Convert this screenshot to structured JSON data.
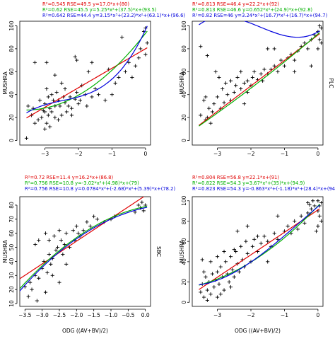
{
  "chart_data": [
    {
      "type": "scatter",
      "xlabel": "",
      "ylabel": "MUSHRA",
      "side_label": "",
      "x_ticks": [
        -3,
        -2,
        -1,
        0
      ],
      "y_ticks": [
        0,
        20,
        40,
        60,
        80,
        100
      ],
      "xlim": [
        -3.75,
        0.15
      ],
      "ylim": [
        -4,
        104
      ],
      "fit_texts": [
        {
          "text": "R²=0.545  RSE=49.5  y=17.0*x+(80)",
          "color": "#e00000"
        },
        {
          "text": "R²=0.62  RSE=45.5  y=5.25*x²+(37.5)*x+(93.5)",
          "color": "#00b000"
        },
        {
          "text": "R²=0.642  RSE=44.4  y=3.15*x³+(23.2)*x²+(63.1)*x+(96.6)",
          "color": "#0000dd"
        }
      ],
      "fits": [
        {
          "color": "#e00000",
          "coef": [
            80,
            17.0
          ]
        },
        {
          "color": "#00b000",
          "coef": [
            93.5,
            37.5,
            5.25
          ]
        },
        {
          "color": "#0000dd",
          "coef": [
            96.6,
            63.1,
            23.2,
            3.15
          ]
        }
      ],
      "points": [
        [
          -3.55,
          2
        ],
        [
          -3.5,
          30
        ],
        [
          -3.4,
          22
        ],
        [
          -3.35,
          28
        ],
        [
          -3.3,
          15
        ],
        [
          -3.2,
          18
        ],
        [
          -3.15,
          35
        ],
        [
          -3.1,
          20
        ],
        [
          -3.05,
          26
        ],
        [
          -3.0,
          10
        ],
        [
          -3.0,
          32
        ],
        [
          -2.95,
          45
        ],
        [
          -2.95,
          15
        ],
        [
          -2.9,
          22
        ],
        [
          -2.9,
          38
        ],
        [
          -2.85,
          28
        ],
        [
          -2.85,
          12
        ],
        [
          -2.8,
          25
        ],
        [
          -2.75,
          35
        ],
        [
          -2.7,
          30
        ],
        [
          -2.7,
          20
        ],
        [
          -2.65,
          42
        ],
        [
          -2.6,
          35
        ],
        [
          -2.55,
          30
        ],
        [
          -2.5,
          50
        ],
        [
          -2.5,
          22
        ],
        [
          -2.45,
          38
        ],
        [
          -2.4,
          45
        ],
        [
          -2.35,
          25
        ],
        [
          -2.3,
          30
        ],
        [
          -2.25,
          38
        ],
        [
          -2.2,
          22
        ],
        [
          -2.1,
          36
        ],
        [
          -2.05,
          42
        ],
        [
          -2.0,
          32
        ],
        [
          -1.95,
          35
        ],
        [
          -1.9,
          48
        ],
        [
          -1.8,
          40
        ],
        [
          -1.75,
          30
        ],
        [
          -1.7,
          60
        ],
        [
          -1.6,
          38
        ],
        [
          -1.5,
          45
        ],
        [
          -1.4,
          40
        ],
        [
          -1.2,
          35
        ],
        [
          -1.1,
          62
        ],
        [
          -1.0,
          40
        ],
        [
          -0.9,
          50
        ],
        [
          -0.8,
          55
        ],
        [
          -0.7,
          90
        ],
        [
          -0.6,
          60
        ],
        [
          -0.5,
          68
        ],
        [
          -0.4,
          55
        ],
        [
          -0.3,
          65
        ],
        [
          -0.2,
          72
        ],
        [
          -0.15,
          80
        ],
        [
          -0.05,
          95
        ],
        [
          0.0,
          98
        ],
        [
          0.05,
          85
        ],
        [
          0.0,
          75
        ],
        [
          -3.3,
          68
        ],
        [
          -2.95,
          68
        ],
        [
          -2.7,
          57
        ],
        [
          -2.1,
          73
        ],
        [
          -2.05,
          70
        ],
        [
          -1.6,
          68
        ],
        [
          -3.0,
          25
        ],
        [
          -2.8,
          40
        ],
        [
          -2.6,
          18
        ],
        [
          -2.4,
          33
        ],
        [
          -2.2,
          28
        ]
      ]
    },
    {
      "type": "scatter",
      "xlabel": "",
      "ylabel": "MUSHRA",
      "side_label": "PLC",
      "x_ticks": [
        -3,
        -2,
        -1,
        0
      ],
      "y_ticks": [
        0,
        20,
        40,
        60,
        80,
        100
      ],
      "xlim": [
        -3.75,
        0.15
      ],
      "ylim": [
        -4,
        104
      ],
      "fit_texts": [
        {
          "text": "R²=0.813  RSE=46.4  y=22.2*x+(92)",
          "color": "#e00000"
        },
        {
          "text": "R²=0.813  RSE=46.6  y=0.652*x²+(24.9)*x+(92.8)",
          "color": "#00b000"
        },
        {
          "text": "R²=0.82  RSE=46  y=3.24*x³+(16.7)*x²+(16.7)*x+(94.7)",
          "color": "#0000dd"
        }
      ],
      "fits": [
        {
          "color": "#e00000",
          "coef": [
            92,
            22.2
          ]
        },
        {
          "color": "#00b000",
          "coef": [
            92.8,
            24.9,
            0.652
          ]
        },
        {
          "color": "#0000dd",
          "coef": [
            94.7,
            16.7,
            16.7,
            3.24
          ]
        }
      ],
      "points": [
        [
          -3.5,
          22
        ],
        [
          -3.4,
          35
        ],
        [
          -3.35,
          18
        ],
        [
          -3.3,
          20
        ],
        [
          -3.25,
          28
        ],
        [
          -3.2,
          15
        ],
        [
          -3.15,
          25
        ],
        [
          -3.1,
          32
        ],
        [
          -3.0,
          38
        ],
        [
          -2.9,
          28
        ],
        [
          -2.85,
          45
        ],
        [
          -2.8,
          33
        ],
        [
          -2.75,
          50
        ],
        [
          -2.7,
          40
        ],
        [
          -2.6,
          35
        ],
        [
          -2.5,
          42
        ],
        [
          -2.45,
          48
        ],
        [
          -2.4,
          55
        ],
        [
          -2.3,
          45
        ],
        [
          -2.2,
          50
        ],
        [
          -2.1,
          52
        ],
        [
          -2.0,
          48
        ],
        [
          -1.95,
          55
        ],
        [
          -1.9,
          60
        ],
        [
          -1.8,
          53
        ],
        [
          -1.7,
          58
        ],
        [
          -1.65,
          52
        ],
        [
          -1.6,
          62
        ],
        [
          -1.5,
          58
        ],
        [
          -1.4,
          62
        ],
        [
          -1.3,
          65
        ],
        [
          -1.2,
          60
        ],
        [
          -1.1,
          70
        ],
        [
          -1.0,
          65
        ],
        [
          -0.9,
          72
        ],
        [
          -0.8,
          75
        ],
        [
          -0.7,
          70
        ],
        [
          -0.6,
          78
        ],
        [
          -0.5,
          82
        ],
        [
          -0.4,
          85
        ],
        [
          -0.3,
          80
        ],
        [
          -0.2,
          88
        ],
        [
          -0.1,
          92
        ],
        [
          0.0,
          95
        ],
        [
          0.05,
          88
        ],
        [
          0.05,
          100
        ],
        [
          0.1,
          98
        ],
        [
          0.1,
          85
        ],
        [
          0.0,
          80
        ],
        [
          -3.35,
          38
        ],
        [
          -3.05,
          60
        ],
        [
          -2.95,
          55
        ],
        [
          -2.6,
          52
        ],
        [
          -2.3,
          60
        ],
        [
          -2.2,
          32
        ],
        [
          -1.5,
          80
        ],
        [
          -1.3,
          80
        ],
        [
          -0.7,
          60
        ],
        [
          -3.5,
          82
        ],
        [
          -3.3,
          74
        ],
        [
          -0.2,
          65
        ],
        [
          -2.1,
          42
        ]
      ]
    },
    {
      "type": "scatter",
      "xlabel": "ODG ((AV+BV)/2)",
      "ylabel": "MUSHRA",
      "side_label": "SBC",
      "x_ticks": [
        -3.5,
        -3.0,
        -2.5,
        -2.0,
        -1.5,
        -1.0,
        -0.5,
        0.0
      ],
      "y_ticks": [
        10,
        20,
        30,
        40,
        50,
        60,
        70,
        80
      ],
      "xlim": [
        -3.65,
        0.15
      ],
      "ylim": [
        8,
        86
      ],
      "fit_texts": [
        {
          "text": "R²=0.72  RSE=11.4  y=16.2*x+(86.8)",
          "color": "#e00000"
        },
        {
          "text": "R²=0.756  RSE=10.8  y=-3.02*x²+(4.98)*x+(79)",
          "color": "#00b000"
        },
        {
          "text": "R²=0.756  RSE=10.8  y=0.0784*x³+(-2.68)*x²+(5.39)*x+(78.2)",
          "color": "#0000dd"
        }
      ],
      "fits": [
        {
          "color": "#e00000",
          "coef": [
            86.8,
            16.2
          ]
        },
        {
          "color": "#00b000",
          "coef": [
            79,
            4.98,
            -3.02
          ]
        },
        {
          "color": "#0000dd",
          "coef": [
            78.2,
            5.39,
            -2.68,
            0.0784
          ]
        }
      ],
      "points": [
        [
          -3.5,
          22
        ],
        [
          -3.4,
          15
        ],
        [
          -3.35,
          25
        ],
        [
          -3.3,
          20
        ],
        [
          -3.2,
          30
        ],
        [
          -3.15,
          12
        ],
        [
          -3.1,
          28
        ],
        [
          -3.0,
          35
        ],
        [
          -2.95,
          40
        ],
        [
          -2.9,
          18
        ],
        [
          -2.85,
          32
        ],
        [
          -2.8,
          45
        ],
        [
          -2.75,
          38
        ],
        [
          -2.7,
          42
        ],
        [
          -2.65,
          58
        ],
        [
          -2.6,
          48
        ],
        [
          -2.55,
          50
        ],
        [
          -2.5,
          62
        ],
        [
          -2.45,
          55
        ],
        [
          -2.4,
          45
        ],
        [
          -2.35,
          52
        ],
        [
          -2.3,
          60
        ],
        [
          -2.2,
          50
        ],
        [
          -2.1,
          62
        ],
        [
          -2.05,
          55
        ],
        [
          -2.0,
          65
        ],
        [
          -1.95,
          60
        ],
        [
          -1.9,
          58
        ],
        [
          -1.8,
          62
        ],
        [
          -1.7,
          68
        ],
        [
          -1.6,
          65
        ],
        [
          -1.5,
          72
        ],
        [
          -1.4,
          70
        ],
        [
          -1.2,
          68
        ],
        [
          -1.0,
          70
        ],
        [
          -0.9,
          72
        ],
        [
          -0.3,
          75
        ],
        [
          -0.2,
          80
        ],
        [
          -0.15,
          78
        ],
        [
          -0.1,
          82
        ],
        [
          -0.05,
          76
        ],
        [
          0.0,
          80
        ],
        [
          -3.2,
          52
        ],
        [
          -3.1,
          55
        ],
        [
          -2.9,
          60
        ],
        [
          -2.7,
          30
        ],
        [
          -2.5,
          25
        ],
        [
          -2.8,
          55
        ],
        [
          -2.3,
          38
        ]
      ]
    },
    {
      "type": "scatter",
      "xlabel": "ODG ((AV+BV)/2)",
      "ylabel": "MUSHRA",
      "side_label": "",
      "x_ticks": [
        -3,
        -2,
        -1,
        0
      ],
      "y_ticks": [
        0,
        20,
        40,
        60,
        80,
        100
      ],
      "xlim": [
        -3.75,
        0.15
      ],
      "ylim": [
        -4,
        104
      ],
      "fit_texts": [
        {
          "text": "R²=0.804  RSE=56.8  y=22.1*x+(91)",
          "color": "#e00000"
        },
        {
          "text": "R²=0.822  RSE=54.3  y=3.67*x²+(35)*x+(94.9)",
          "color": "#00b000"
        },
        {
          "text": "R²=0.823  RSE=54.3  y=-0.863*x³+(-1.18)*x²+(28.4)*x+(94.3)",
          "color": "#0000dd"
        }
      ],
      "fits": [
        {
          "color": "#e00000",
          "coef": [
            91,
            22.1
          ]
        },
        {
          "color": "#00b000",
          "coef": [
            94.9,
            35,
            3.67
          ]
        },
        {
          "color": "#0000dd",
          "coef": [
            94.3,
            28.4,
            -1.18,
            -0.863
          ]
        }
      ],
      "points": [
        [
          -3.5,
          10
        ],
        [
          -3.45,
          18
        ],
        [
          -3.4,
          5
        ],
        [
          -3.35,
          25
        ],
        [
          -3.3,
          12
        ],
        [
          -3.25,
          20
        ],
        [
          -3.2,
          8
        ],
        [
          -3.15,
          28
        ],
        [
          -3.1,
          15
        ],
        [
          -3.05,
          22
        ],
        [
          -3.0,
          30
        ],
        [
          -3.0,
          5
        ],
        [
          -2.95,
          18
        ],
        [
          -2.9,
          35
        ],
        [
          -2.85,
          25
        ],
        [
          -2.8,
          12
        ],
        [
          -2.75,
          40
        ],
        [
          -2.7,
          28
        ],
        [
          -2.65,
          20
        ],
        [
          -2.6,
          45
        ],
        [
          -2.55,
          32
        ],
        [
          -2.5,
          25
        ],
        [
          -2.45,
          50
        ],
        [
          -2.4,
          38
        ],
        [
          -2.35,
          30
        ],
        [
          -2.3,
          55
        ],
        [
          -2.25,
          42
        ],
        [
          -2.2,
          35
        ],
        [
          -2.15,
          60
        ],
        [
          -2.1,
          48
        ],
        [
          -2.0,
          40
        ],
        [
          -1.95,
          55
        ],
        [
          -1.9,
          62
        ],
        [
          -1.8,
          50
        ],
        [
          -1.7,
          58
        ],
        [
          -1.6,
          65
        ],
        [
          -1.5,
          60
        ],
        [
          -1.4,
          55
        ],
        [
          -1.3,
          68
        ],
        [
          -1.2,
          62
        ],
        [
          -1.0,
          70
        ],
        [
          -0.9,
          75
        ],
        [
          -0.8,
          68
        ],
        [
          -0.7,
          80
        ],
        [
          -0.6,
          72
        ],
        [
          -0.5,
          85
        ],
        [
          -0.4,
          78
        ],
        [
          -0.3,
          88
        ],
        [
          -0.2,
          92
        ],
        [
          -0.1,
          95
        ],
        [
          0.0,
          100
        ],
        [
          0.0,
          90
        ],
        [
          0.05,
          85
        ],
        [
          0.05,
          95
        ],
        [
          0.1,
          98
        ],
        [
          0.1,
          80
        ],
        [
          -0.05,
          70
        ],
        [
          -3.4,
          30
        ],
        [
          -3.2,
          40
        ],
        [
          -2.8,
          50
        ],
        [
          -2.6,
          15
        ],
        [
          -3.3,
          2
        ],
        [
          -3.0,
          45
        ],
        [
          -2.9,
          8
        ],
        [
          -2.4,
          70
        ],
        [
          -2.1,
          75
        ],
        [
          -1.8,
          65
        ],
        [
          -0.3,
          98
        ],
        [
          -0.15,
          100
        ],
        [
          -0.25,
          96
        ],
        [
          0.0,
          75
        ],
        [
          -1.2,
          85
        ],
        [
          -2.5,
          52
        ],
        [
          -1.5,
          40
        ],
        [
          -3.45,
          42
        ]
      ]
    }
  ]
}
